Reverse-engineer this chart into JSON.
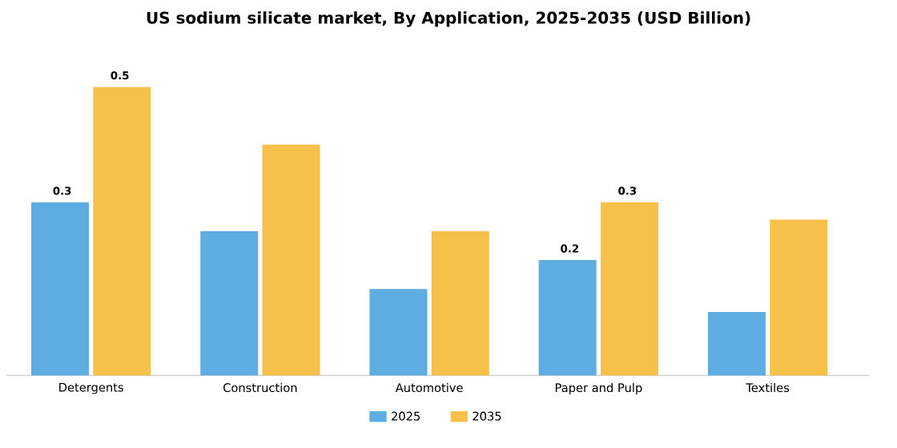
{
  "chart_data": {
    "type": "bar",
    "title": "US sodium silicate market, By Application, 2025-2035 (USD Billion)",
    "categories": [
      "Detergents",
      "Construction",
      "Automotive",
      "Paper and Pulp",
      "Textiles"
    ],
    "series": [
      {
        "name": "2025",
        "color": "#5dade2",
        "values": [
          0.3,
          0.25,
          0.15,
          0.2,
          0.11
        ],
        "value_labels": [
          "0.3",
          null,
          null,
          "0.2",
          null
        ]
      },
      {
        "name": "2035",
        "color": "#f7c04a",
        "values": [
          0.5,
          0.4,
          0.25,
          0.3,
          0.27
        ],
        "value_labels": [
          "0.5",
          null,
          null,
          "0.3",
          null
        ]
      }
    ],
    "legend": "bottom"
  }
}
